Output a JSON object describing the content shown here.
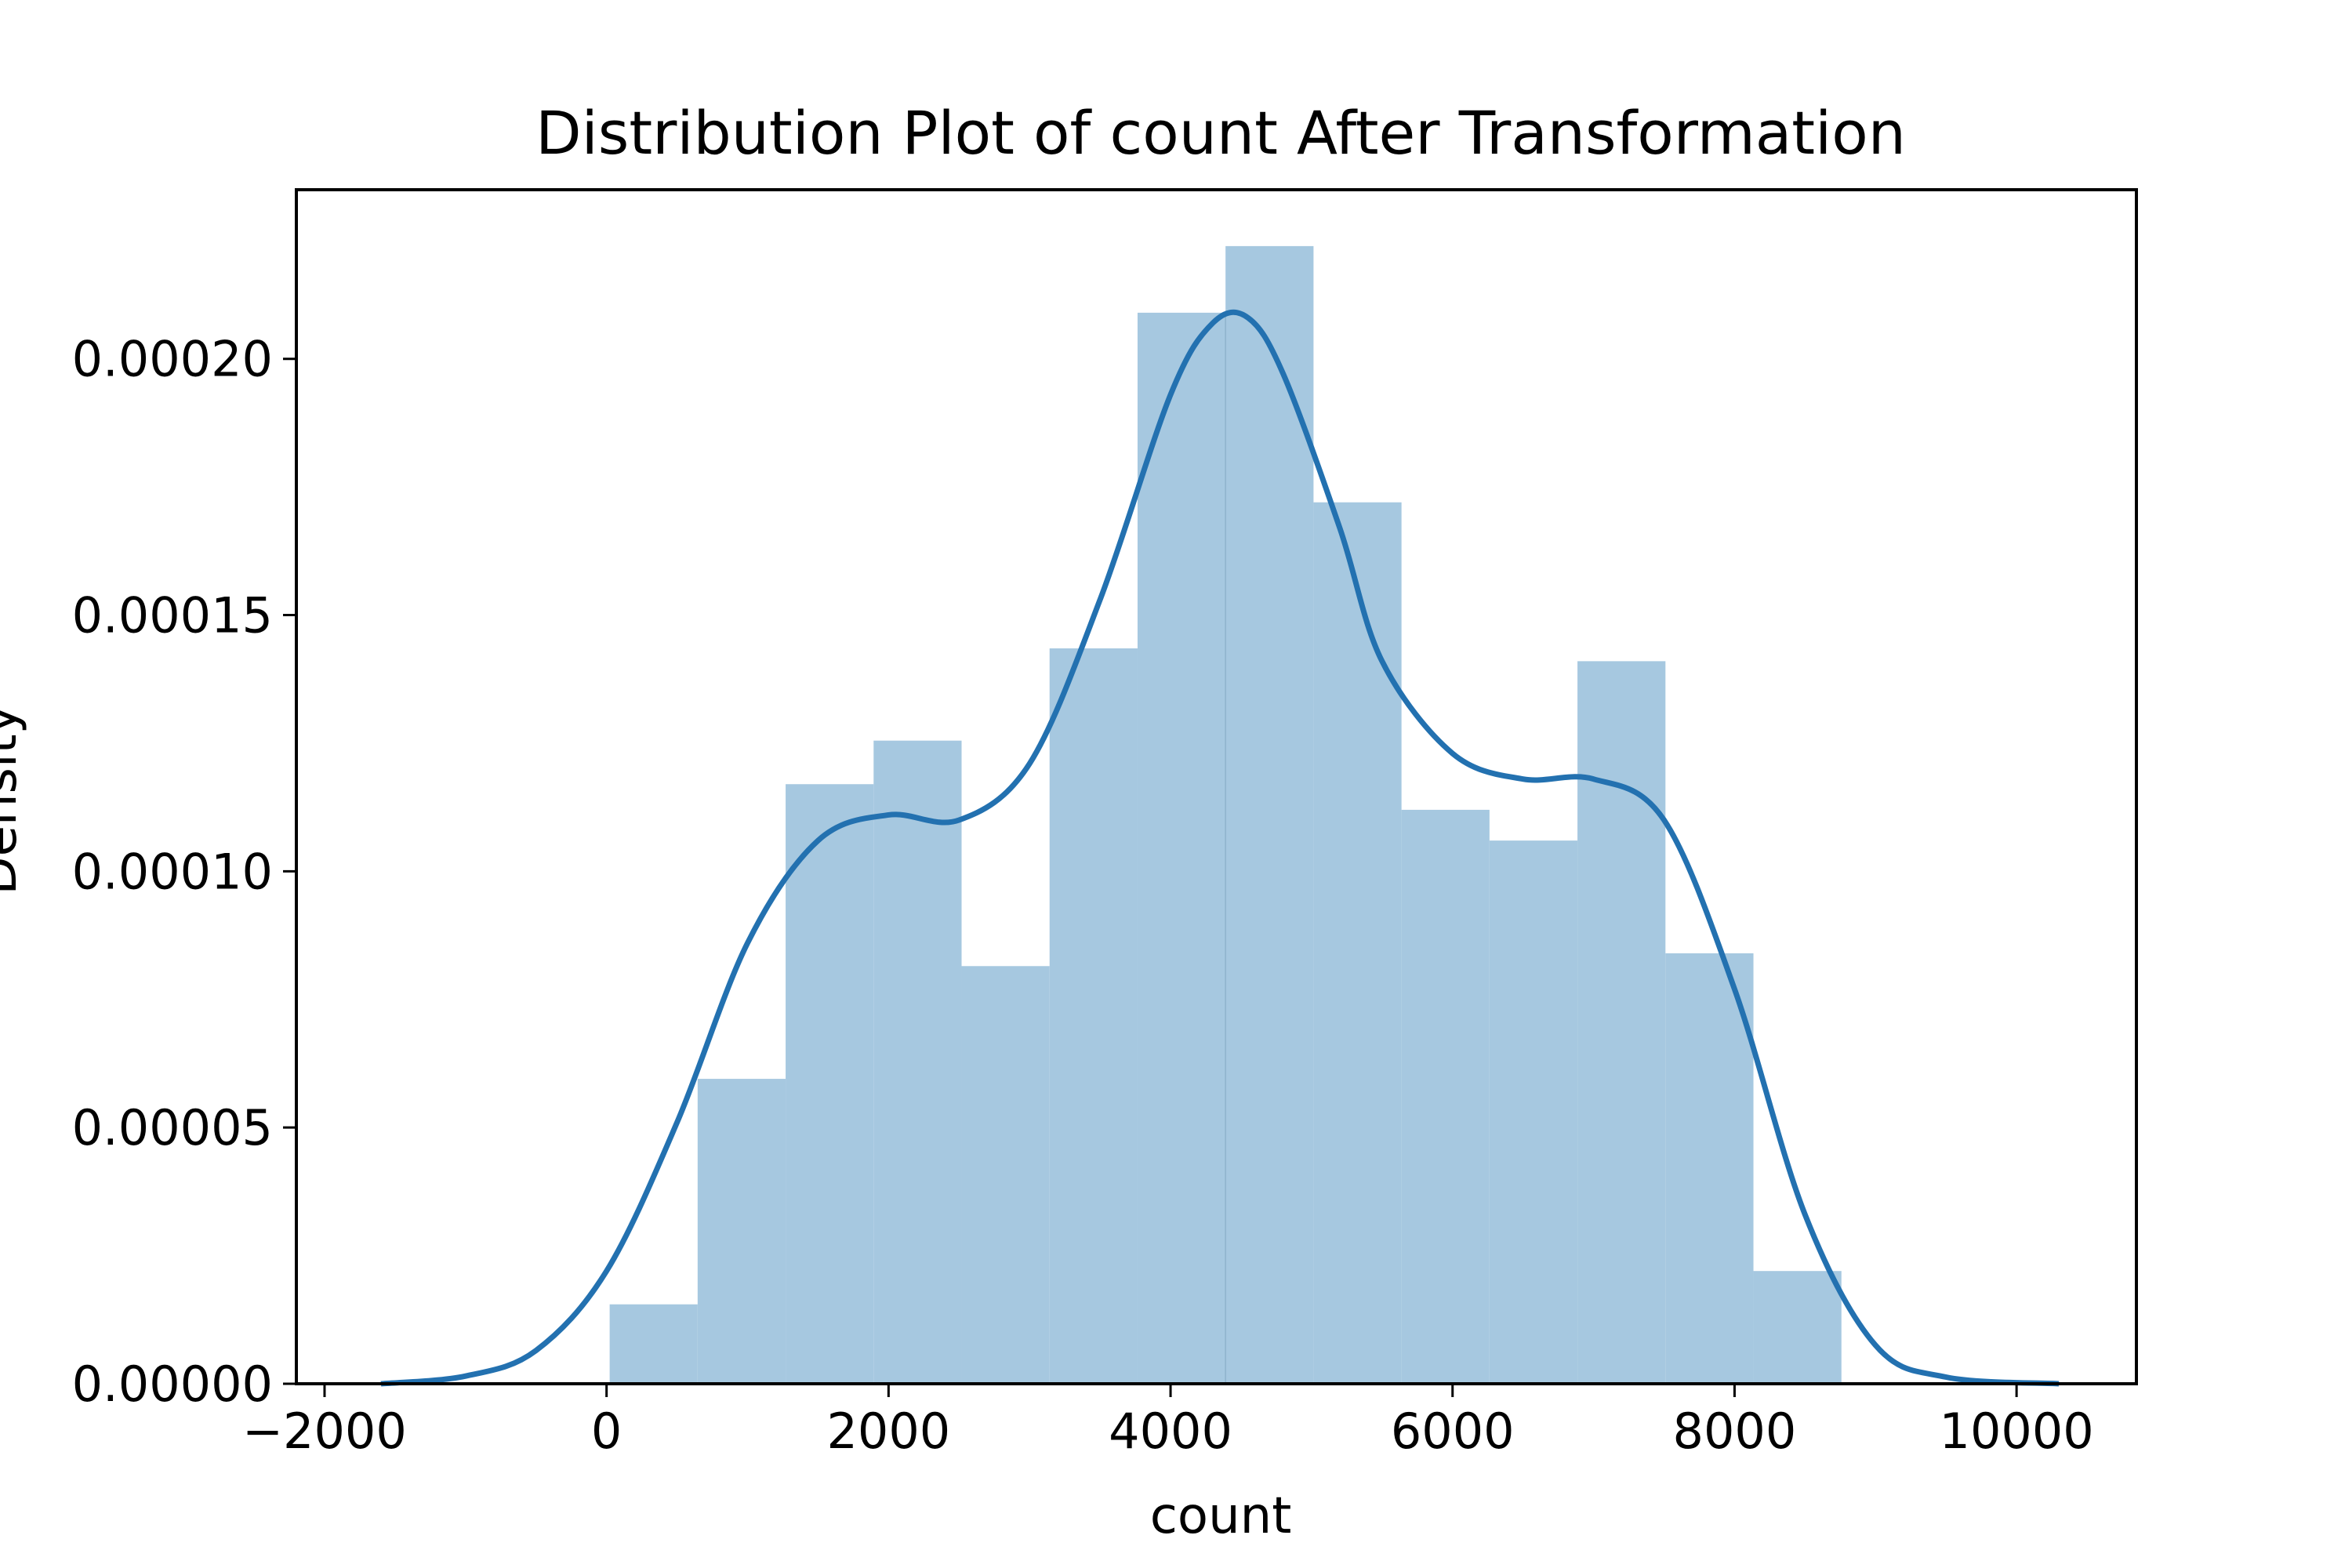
{
  "chart_data": {
    "type": "bar",
    "title": "Distribution Plot of count After Transformation",
    "xlabel": "count",
    "ylabel": "Density",
    "xlim": [
      -2200,
      10850
    ],
    "ylim": [
      0,
      0.000233
    ],
    "x_ticks": [
      -2000,
      0,
      2000,
      4000,
      6000,
      8000,
      10000
    ],
    "x_tick_labels": [
      "−2000",
      "0",
      "2000",
      "4000",
      "6000",
      "8000",
      "10000"
    ],
    "y_ticks": [
      0,
      5e-05,
      0.0001,
      0.00015,
      0.0002
    ],
    "y_tick_labels": [
      "0.00000",
      "0.00005",
      "0.00010",
      "0.00015",
      "0.00020"
    ],
    "grid": false,
    "histogram": {
      "bin_edges": [
        22,
        646,
        1270,
        1894,
        2518,
        3142,
        3766,
        4390,
        5014,
        5638,
        6262,
        6886,
        7510,
        8134,
        8758
      ],
      "values": [
        1.55e-05,
        5.95e-05,
        0.000117,
        0.0001255,
        8.15e-05,
        0.0001435,
        0.000209,
        0.000222,
        0.000172,
        0.000112,
        0.000106,
        0.000141,
        8.4e-05,
        2.2e-05
      ],
      "color": "#a6c8e0"
    },
    "series": [
      {
        "type": "line",
        "color": "#2371b0",
        "x": [
          -1600,
          -1000,
          -500,
          0,
          500,
          1000,
          1500,
          2000,
          2500,
          3000,
          3500,
          4000,
          4300,
          4550,
          4800,
          5200,
          5500,
          6000,
          6500,
          7000,
          7500,
          8000,
          8500,
          9000,
          9500,
          10300
        ],
        "y": [
          0,
          1.5e-06,
          6.5e-06,
          2.2e-05,
          5.1e-05,
          8.6e-05,
          0.000106,
          0.000111,
          0.00011,
          0.000121,
          0.000153,
          0.000193,
          0.000207,
          0.000208,
          0.000197,
          0.000167,
          0.000141,
          0.000123,
          0.000118,
          0.000118,
          0.00011,
          7.7e-05,
          3.3e-05,
          7.5e-06,
          1.3e-06,
          0
        ]
      }
    ]
  }
}
